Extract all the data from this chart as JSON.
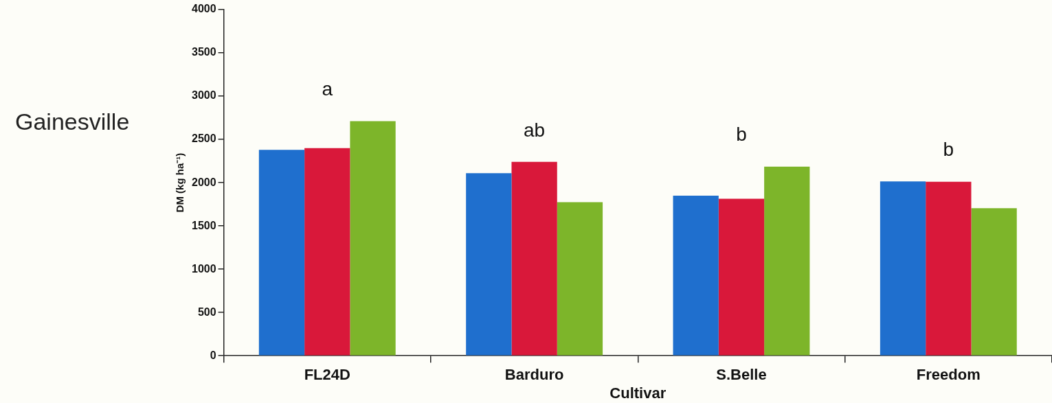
{
  "chart_data": {
    "type": "bar",
    "title": "Gainesville",
    "xlabel": "Cultivar",
    "ylabel": "DM (kg ha⁻¹)",
    "categories": [
      "FL24D",
      "Barduro",
      "S.Belle",
      "Freedom"
    ],
    "series": [
      {
        "color": "#1f6fce",
        "values": [
          2380,
          2110,
          1850,
          2015
        ]
      },
      {
        "color": "#d9183a",
        "values": [
          2400,
          2240,
          1815,
          2010
        ]
      },
      {
        "color": "#7db52a",
        "values": [
          2710,
          1775,
          2185,
          1705
        ]
      }
    ],
    "ylim": [
      0,
      4000
    ],
    "yticks": [
      0,
      500,
      1000,
      1500,
      2000,
      2500,
      3000,
      3500,
      4000
    ],
    "grid": false,
    "legend": false,
    "annotations": [
      "a",
      "ab",
      "b",
      "b"
    ]
  }
}
